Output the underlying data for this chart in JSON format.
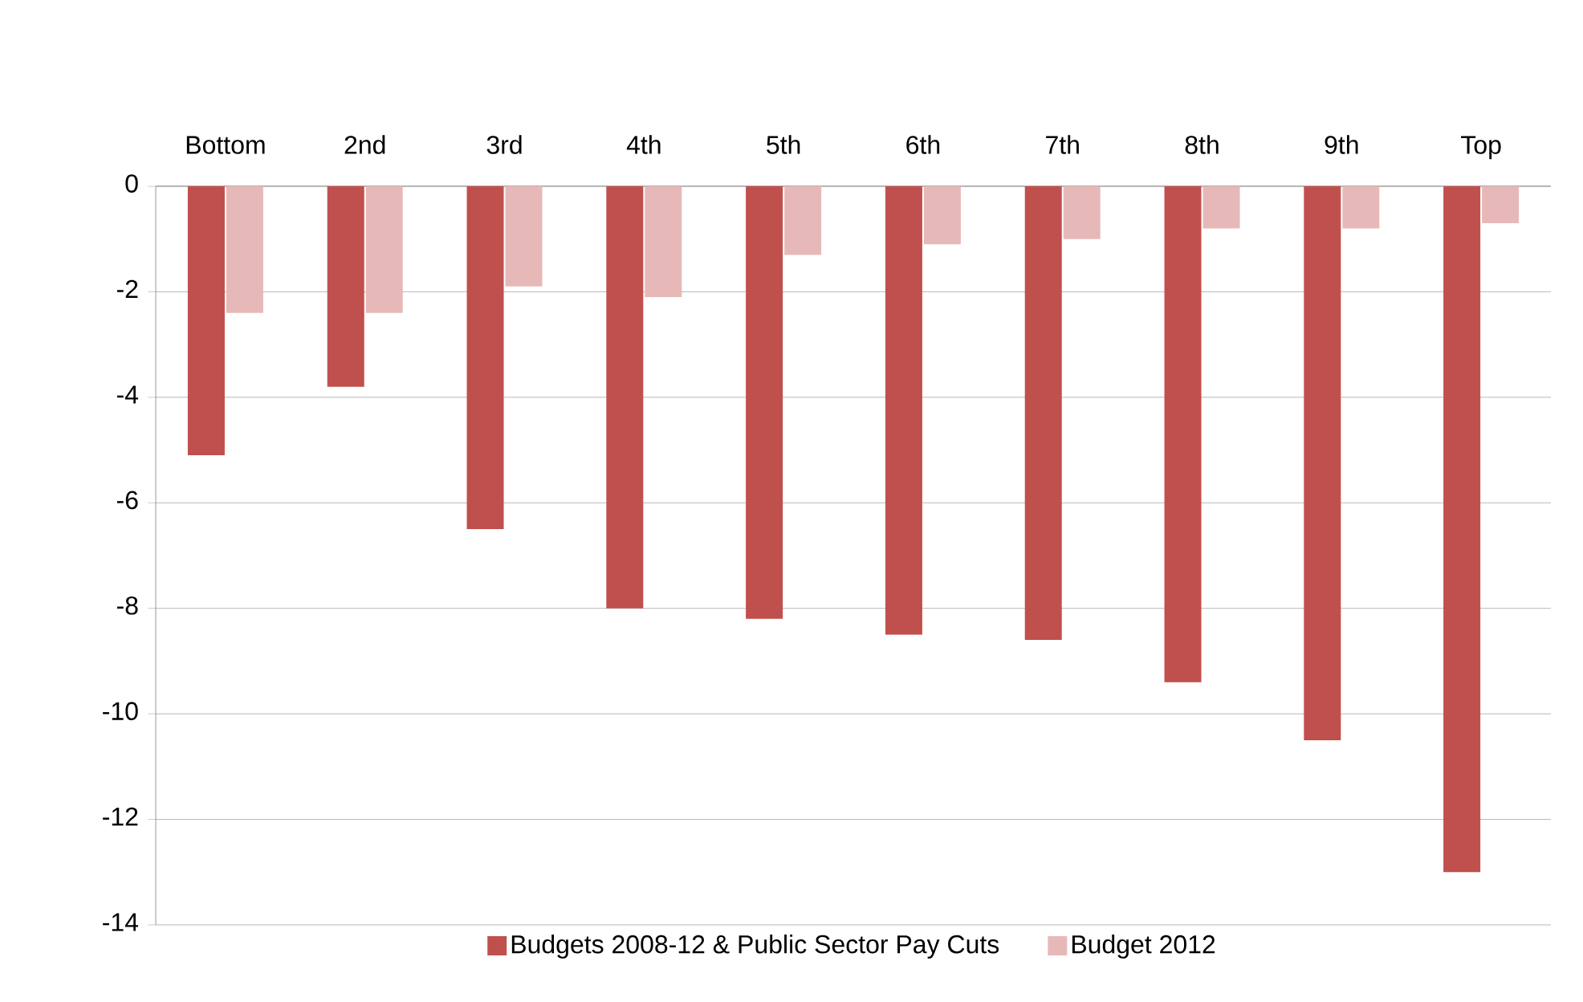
{
  "chart_data": {
    "type": "bar",
    "categories": [
      "Bottom",
      "2nd",
      "3rd",
      "4th",
      "5th",
      "6th",
      "7th",
      "8th",
      "9th",
      "Top"
    ],
    "series": [
      {
        "name": "Budgets 2008-12 & Public Sector Pay Cuts",
        "color": "#c0504d",
        "values": [
          -5.1,
          -3.8,
          -6.5,
          -8.0,
          -8.2,
          -8.5,
          -8.6,
          -9.4,
          -10.5,
          -13.0
        ]
      },
      {
        "name": "Budget 2012",
        "color": "#e6b9b8",
        "values": [
          -2.4,
          -2.4,
          -1.9,
          -2.1,
          -1.3,
          -1.1,
          -1.0,
          -0.8,
          -0.8,
          -0.7
        ]
      }
    ],
    "ylim": [
      -14,
      0
    ],
    "yticks": [
      -14,
      -12,
      -10,
      -8,
      -6,
      -4,
      -2,
      0
    ],
    "grid": "y",
    "legend": "bottom"
  }
}
